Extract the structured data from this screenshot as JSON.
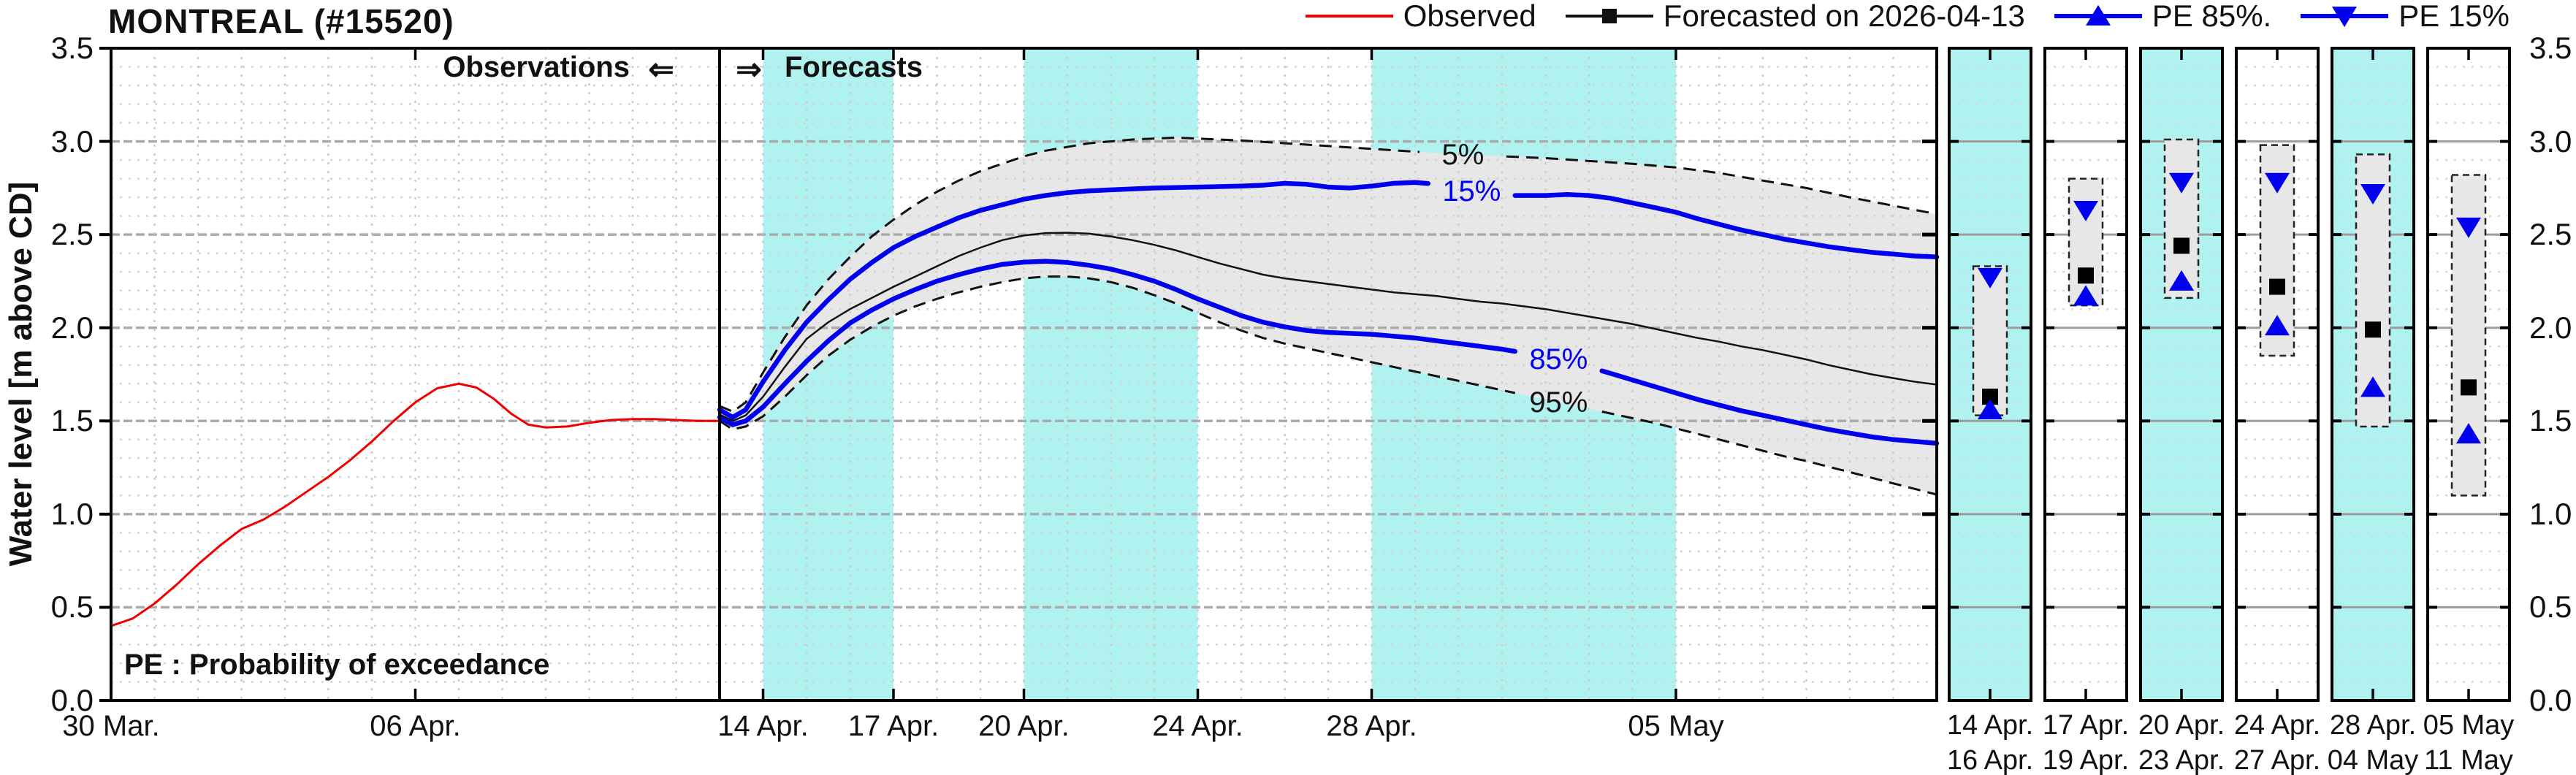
{
  "title": "MONTREAL (#15520)",
  "legend": {
    "items": [
      {
        "id": "observed",
        "label": "Observed",
        "color": "#ee0000",
        "marker": "none"
      },
      {
        "id": "forecast",
        "label": "Forecasted on 2026-04-13",
        "color": "#111111",
        "marker": "square"
      },
      {
        "id": "pe85",
        "label": "PE 85%.",
        "color": "#0000ee",
        "marker": "triangle-up"
      },
      {
        "id": "pe15",
        "label": "PE 15%",
        "color": "#0000ee",
        "marker": "triangle-down"
      }
    ]
  },
  "annotations": {
    "observations_label": "Observations",
    "forecasts_label": "Forecasts",
    "left_arrow": "⇐",
    "right_arrow": "⇒",
    "pe_note": "PE : Probability of exceedance"
  },
  "y_axis": {
    "label": "Water level [m above CD]",
    "min": 0.0,
    "max": 3.5,
    "major_ticks": [
      3.5,
      3.0,
      2.5,
      2.0,
      1.5,
      1.0,
      0.5,
      0.0
    ],
    "minor_step": 0.1
  },
  "x_axis": {
    "total_days": 42,
    "ticks": [
      {
        "label": "30 Mar.",
        "day": 0
      },
      {
        "label": "06 Apr.",
        "day": 7
      },
      {
        "label": "14 Apr.",
        "day": 15
      },
      {
        "label": "17 Apr.",
        "day": 18
      },
      {
        "label": "20 Apr.",
        "day": 21
      },
      {
        "label": "24 Apr.",
        "day": 25
      },
      {
        "label": "28 Apr.",
        "day": 29
      },
      {
        "label": "05 May",
        "day": 36
      }
    ]
  },
  "chart_data": {
    "type": "line",
    "title": "MONTREAL (#15520)",
    "ylabel": "Water level [m above CD]",
    "ylim": [
      0.0,
      3.5
    ],
    "x_unit": "days since 30 Mar.",
    "forecast_issue_day": 14,
    "forecast_issue_date": "2026-04-13",
    "colors": {
      "band_cyan": "#aff2f0",
      "fan_gray": "#e7e7e7",
      "blue": "#0000ee",
      "red": "#ee0000",
      "black": "#111111"
    },
    "shaded_periods": [
      {
        "start_day": 15,
        "end_day": 18
      },
      {
        "start_day": 21,
        "end_day": 25
      },
      {
        "start_day": 29,
        "end_day": 36
      }
    ],
    "observed": {
      "name": "Observed",
      "points": [
        [
          0,
          0.4
        ],
        [
          0.5,
          0.44
        ],
        [
          1,
          0.52
        ],
        [
          1.5,
          0.62
        ],
        [
          2,
          0.73
        ],
        [
          2.5,
          0.83
        ],
        [
          3,
          0.92
        ],
        [
          3.5,
          0.97
        ],
        [
          4,
          1.04
        ],
        [
          4.5,
          1.12
        ],
        [
          5,
          1.2
        ],
        [
          5.5,
          1.29
        ],
        [
          6,
          1.39
        ],
        [
          6.5,
          1.5
        ],
        [
          7,
          1.6
        ],
        [
          7.5,
          1.675
        ],
        [
          8,
          1.7
        ],
        [
          8.4,
          1.68
        ],
        [
          8.8,
          1.62
        ],
        [
          9.2,
          1.54
        ],
        [
          9.6,
          1.48
        ],
        [
          10,
          1.465
        ],
        [
          10.5,
          1.47
        ],
        [
          11,
          1.49
        ],
        [
          11.5,
          1.505
        ],
        [
          12,
          1.51
        ],
        [
          12.5,
          1.51
        ],
        [
          13,
          1.505
        ],
        [
          13.5,
          1.5
        ],
        [
          14,
          1.5
        ]
      ]
    },
    "pe5": {
      "name": "PE 5%",
      "points": [
        [
          14,
          1.58
        ],
        [
          14.3,
          1.55
        ],
        [
          14.6,
          1.6
        ],
        [
          15,
          1.76
        ],
        [
          15.5,
          1.95
        ],
        [
          16,
          2.12
        ],
        [
          16.5,
          2.26
        ],
        [
          17,
          2.38
        ],
        [
          17.5,
          2.49
        ],
        [
          18,
          2.58
        ],
        [
          18.5,
          2.66
        ],
        [
          19,
          2.73
        ],
        [
          19.5,
          2.79
        ],
        [
          20,
          2.84
        ],
        [
          20.5,
          2.88
        ],
        [
          21,
          2.92
        ],
        [
          21.5,
          2.95
        ],
        [
          22,
          2.97
        ],
        [
          22.5,
          2.99
        ],
        [
          23,
          3.0
        ],
        [
          23.5,
          3.01
        ],
        [
          24,
          3.015
        ],
        [
          24.5,
          3.02
        ],
        [
          25,
          3.015
        ],
        [
          25.5,
          3.01
        ],
        [
          26,
          3.005
        ],
        [
          27,
          2.99
        ],
        [
          28,
          2.975
        ],
        [
          29,
          2.96
        ],
        [
          30,
          2.945
        ],
        [
          31,
          2.93
        ],
        [
          32,
          2.92
        ],
        [
          33,
          2.91
        ],
        [
          34,
          2.895
        ],
        [
          35,
          2.88
        ],
        [
          36,
          2.86
        ],
        [
          37,
          2.83
        ],
        [
          38,
          2.79
        ],
        [
          39,
          2.75
        ],
        [
          40,
          2.7
        ],
        [
          41,
          2.655
        ],
        [
          42,
          2.61
        ]
      ]
    },
    "pe15": {
      "name": "PE 15%",
      "points": [
        [
          14,
          1.56
        ],
        [
          14.3,
          1.52
        ],
        [
          14.6,
          1.56
        ],
        [
          15,
          1.71
        ],
        [
          15.5,
          1.88
        ],
        [
          16,
          2.03
        ],
        [
          16.5,
          2.15
        ],
        [
          17,
          2.26
        ],
        [
          17.5,
          2.35
        ],
        [
          18,
          2.43
        ],
        [
          18.5,
          2.49
        ],
        [
          19,
          2.54
        ],
        [
          19.5,
          2.59
        ],
        [
          20,
          2.63
        ],
        [
          20.5,
          2.66
        ],
        [
          21,
          2.69
        ],
        [
          21.5,
          2.71
        ],
        [
          22,
          2.725
        ],
        [
          22.5,
          2.735
        ],
        [
          23,
          2.74
        ],
        [
          24,
          2.75
        ],
        [
          25,
          2.755
        ],
        [
          26,
          2.76
        ],
        [
          26.5,
          2.765
        ],
        [
          27,
          2.775
        ],
        [
          27.5,
          2.77
        ],
        [
          28,
          2.755
        ],
        [
          28.5,
          2.75
        ],
        [
          29,
          2.76
        ],
        [
          29.5,
          2.775
        ],
        [
          30,
          2.78
        ],
        [
          30.5,
          2.77
        ],
        [
          31,
          2.745
        ],
        [
          31.5,
          2.72
        ],
        [
          32,
          2.71
        ],
        [
          33,
          2.71
        ],
        [
          33.5,
          2.715
        ],
        [
          34,
          2.71
        ],
        [
          34.5,
          2.695
        ],
        [
          35,
          2.67
        ],
        [
          35.5,
          2.645
        ],
        [
          36,
          2.62
        ],
        [
          36.5,
          2.585
        ],
        [
          37,
          2.555
        ],
        [
          37.5,
          2.525
        ],
        [
          38,
          2.5
        ],
        [
          38.5,
          2.475
        ],
        [
          39,
          2.455
        ],
        [
          39.5,
          2.435
        ],
        [
          40,
          2.42
        ],
        [
          40.5,
          2.405
        ],
        [
          41,
          2.395
        ],
        [
          41.5,
          2.385
        ],
        [
          42,
          2.38
        ]
      ]
    },
    "forecast_median": {
      "name": "Forecasted on 2026-04-13",
      "points": [
        [
          14,
          1.535
        ],
        [
          14.3,
          1.5
        ],
        [
          14.6,
          1.53
        ],
        [
          15,
          1.63
        ],
        [
          15.5,
          1.79
        ],
        [
          16,
          1.94
        ],
        [
          16.5,
          2.03
        ],
        [
          17,
          2.1
        ],
        [
          17.5,
          2.16
        ],
        [
          18,
          2.22
        ],
        [
          18.5,
          2.275
        ],
        [
          19,
          2.33
        ],
        [
          19.5,
          2.385
        ],
        [
          20,
          2.43
        ],
        [
          20.5,
          2.47
        ],
        [
          21,
          2.495
        ],
        [
          21.5,
          2.508
        ],
        [
          22,
          2.51
        ],
        [
          22.5,
          2.505
        ],
        [
          23,
          2.49
        ],
        [
          23.5,
          2.47
        ],
        [
          24,
          2.445
        ],
        [
          24.5,
          2.415
        ],
        [
          25,
          2.38
        ],
        [
          25.5,
          2.345
        ],
        [
          26,
          2.315
        ],
        [
          26.5,
          2.285
        ],
        [
          27,
          2.265
        ],
        [
          27.5,
          2.25
        ],
        [
          28,
          2.235
        ],
        [
          28.5,
          2.22
        ],
        [
          29,
          2.205
        ],
        [
          29.5,
          2.19
        ],
        [
          30,
          2.18
        ],
        [
          30.5,
          2.17
        ],
        [
          31,
          2.155
        ],
        [
          31.5,
          2.14
        ],
        [
          32,
          2.13
        ],
        [
          32.5,
          2.115
        ],
        [
          33,
          2.1
        ],
        [
          33.5,
          2.08
        ],
        [
          34,
          2.06
        ],
        [
          34.5,
          2.04
        ],
        [
          35,
          2.02
        ],
        [
          35.5,
          1.995
        ],
        [
          36,
          1.97
        ],
        [
          36.5,
          1.945
        ],
        [
          37,
          1.925
        ],
        [
          37.5,
          1.9
        ],
        [
          38,
          1.88
        ],
        [
          38.5,
          1.855
        ],
        [
          39,
          1.83
        ],
        [
          39.5,
          1.8
        ],
        [
          40,
          1.775
        ],
        [
          40.5,
          1.75
        ],
        [
          41,
          1.73
        ],
        [
          41.5,
          1.71
        ],
        [
          42,
          1.695
        ]
      ]
    },
    "pe85": {
      "name": "PE 85%",
      "points": [
        [
          14,
          1.52
        ],
        [
          14.3,
          1.48
        ],
        [
          14.6,
          1.5
        ],
        [
          15,
          1.575
        ],
        [
          15.5,
          1.7
        ],
        [
          16,
          1.82
        ],
        [
          16.5,
          1.93
        ],
        [
          17,
          2.025
        ],
        [
          17.5,
          2.095
        ],
        [
          18,
          2.155
        ],
        [
          18.5,
          2.205
        ],
        [
          19,
          2.25
        ],
        [
          19.5,
          2.285
        ],
        [
          20,
          2.315
        ],
        [
          20.5,
          2.34
        ],
        [
          21,
          2.352
        ],
        [
          21.5,
          2.357
        ],
        [
          22,
          2.35
        ],
        [
          22.5,
          2.335
        ],
        [
          23,
          2.315
        ],
        [
          23.5,
          2.285
        ],
        [
          24,
          2.25
        ],
        [
          24.5,
          2.205
        ],
        [
          25,
          2.155
        ],
        [
          25.5,
          2.11
        ],
        [
          26,
          2.065
        ],
        [
          26.5,
          2.03
        ],
        [
          27,
          2.005
        ],
        [
          27.5,
          1.985
        ],
        [
          28,
          1.975
        ],
        [
          28.5,
          1.97
        ],
        [
          29,
          1.965
        ],
        [
          29.5,
          1.955
        ],
        [
          30,
          1.945
        ],
        [
          30.5,
          1.93
        ],
        [
          31,
          1.915
        ],
        [
          31.5,
          1.9
        ],
        [
          32,
          1.885
        ],
        [
          32.5,
          1.865
        ],
        [
          33,
          1.845
        ],
        [
          33.5,
          1.82
        ],
        [
          34,
          1.79
        ],
        [
          34.5,
          1.755
        ],
        [
          35,
          1.72
        ],
        [
          35.5,
          1.685
        ],
        [
          36,
          1.65
        ],
        [
          36.5,
          1.615
        ],
        [
          37,
          1.585
        ],
        [
          37.5,
          1.555
        ],
        [
          38,
          1.53
        ],
        [
          38.5,
          1.505
        ],
        [
          39,
          1.48
        ],
        [
          39.5,
          1.455
        ],
        [
          40,
          1.435
        ],
        [
          40.5,
          1.415
        ],
        [
          41,
          1.4
        ],
        [
          41.5,
          1.39
        ],
        [
          42,
          1.38
        ]
      ]
    },
    "pe95": {
      "name": "PE 95%",
      "points": [
        [
          14,
          1.5
        ],
        [
          14.3,
          1.455
        ],
        [
          14.6,
          1.47
        ],
        [
          15,
          1.525
        ],
        [
          15.5,
          1.63
        ],
        [
          16,
          1.745
        ],
        [
          16.5,
          1.85
        ],
        [
          17,
          1.935
        ],
        [
          17.5,
          2.005
        ],
        [
          18,
          2.065
        ],
        [
          18.5,
          2.115
        ],
        [
          19,
          2.155
        ],
        [
          19.5,
          2.19
        ],
        [
          20,
          2.22
        ],
        [
          20.5,
          2.245
        ],
        [
          21,
          2.265
        ],
        [
          21.5,
          2.275
        ],
        [
          22,
          2.275
        ],
        [
          22.5,
          2.265
        ],
        [
          23,
          2.245
        ],
        [
          23.5,
          2.215
        ],
        [
          24,
          2.175
        ],
        [
          24.5,
          2.13
        ],
        [
          25,
          2.08
        ],
        [
          25.5,
          2.03
        ],
        [
          26,
          1.985
        ],
        [
          26.5,
          1.945
        ],
        [
          27,
          1.915
        ],
        [
          27.5,
          1.89
        ],
        [
          28,
          1.865
        ],
        [
          28.5,
          1.84
        ],
        [
          29,
          1.815
        ],
        [
          29.5,
          1.79
        ],
        [
          30,
          1.765
        ],
        [
          30.5,
          1.74
        ],
        [
          31,
          1.715
        ],
        [
          31.5,
          1.69
        ],
        [
          32,
          1.665
        ],
        [
          32.5,
          1.64
        ],
        [
          33,
          1.615
        ],
        [
          33.5,
          1.59
        ],
        [
          34,
          1.565
        ],
        [
          34.5,
          1.54
        ],
        [
          35,
          1.515
        ],
        [
          35.5,
          1.49
        ],
        [
          36,
          1.46
        ],
        [
          36.5,
          1.43
        ],
        [
          37,
          1.4
        ],
        [
          37.5,
          1.37
        ],
        [
          38,
          1.34
        ],
        [
          38.5,
          1.31
        ],
        [
          39,
          1.285
        ],
        [
          39.5,
          1.255
        ],
        [
          40,
          1.225
        ],
        [
          40.5,
          1.195
        ],
        [
          41,
          1.165
        ],
        [
          41.5,
          1.135
        ],
        [
          42,
          1.105
        ]
      ]
    },
    "percent_labels": [
      {
        "text": "5%",
        "series": "pe5",
        "day": 31.1,
        "color": "#111111"
      },
      {
        "text": "15%",
        "series": "pe15",
        "day": 31.3,
        "color": "#0000ee"
      },
      {
        "text": "85%",
        "series": "pe85",
        "day": 33.3,
        "color": "#0000ee"
      },
      {
        "text": "95%",
        "series": "pe95",
        "day": 33.3,
        "color": "#111111"
      }
    ],
    "panels": [
      {
        "label_top": "14 Apr.",
        "label_bottom": "16 Apr.",
        "shaded": true,
        "box_low": 1.53,
        "box_high": 2.33,
        "pe15": 2.27,
        "median": 1.63,
        "pe85": 1.56
      },
      {
        "label_top": "17 Apr.",
        "label_bottom": "19 Apr.",
        "shaded": false,
        "box_low": 2.12,
        "box_high": 2.8,
        "pe15": 2.63,
        "median": 2.28,
        "pe85": 2.17
      },
      {
        "label_top": "20 Apr.",
        "label_bottom": "23 Apr.",
        "shaded": true,
        "box_low": 2.16,
        "box_high": 3.01,
        "pe15": 2.78,
        "median": 2.44,
        "pe85": 2.25
      },
      {
        "label_top": "24 Apr.",
        "label_bottom": "27 Apr.",
        "shaded": false,
        "box_low": 1.85,
        "box_high": 2.98,
        "pe15": 2.78,
        "median": 2.22,
        "pe85": 2.01
      },
      {
        "label_top": "28 Apr.",
        "label_bottom": "04 May",
        "shaded": true,
        "box_low": 1.47,
        "box_high": 2.93,
        "pe15": 2.72,
        "median": 1.99,
        "pe85": 1.68
      },
      {
        "label_top": "05 May",
        "label_bottom": "11 May",
        "shaded": false,
        "box_low": 1.1,
        "box_high": 2.82,
        "pe15": 2.54,
        "median": 1.68,
        "pe85": 1.43
      }
    ]
  }
}
